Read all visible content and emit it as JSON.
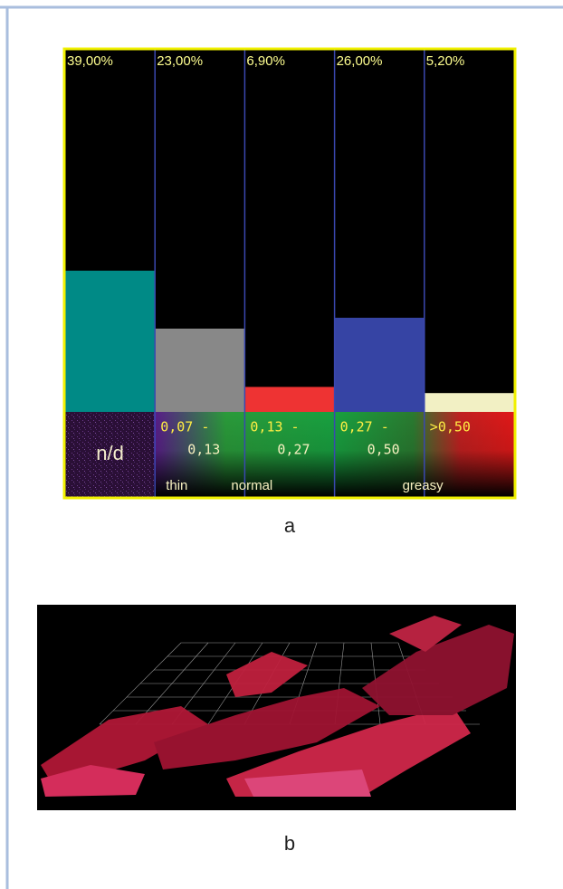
{
  "chart_data": {
    "type": "bar",
    "categories": [
      [
        "n/d"
      ],
      [
        "0,07 -",
        "0,13"
      ],
      [
        "0,13 -",
        "0,27"
      ],
      [
        "0,27 -",
        "0,50"
      ],
      [
        ">0,50"
      ]
    ],
    "values": [
      39,
      23,
      6.9,
      26,
      5.2
    ],
    "value_labels": [
      "39,00%",
      "23,00%",
      "6,90%",
      "26,00%",
      "5,20%"
    ],
    "colors": [
      "#008a86",
      "#888888",
      "#ee3333",
      "#3644a4",
      "#f2f0c4"
    ],
    "group_labels": [
      "thin",
      "normal",
      "greasy"
    ],
    "ylim": [
      0,
      100
    ]
  },
  "captions": [
    "a",
    "b"
  ]
}
